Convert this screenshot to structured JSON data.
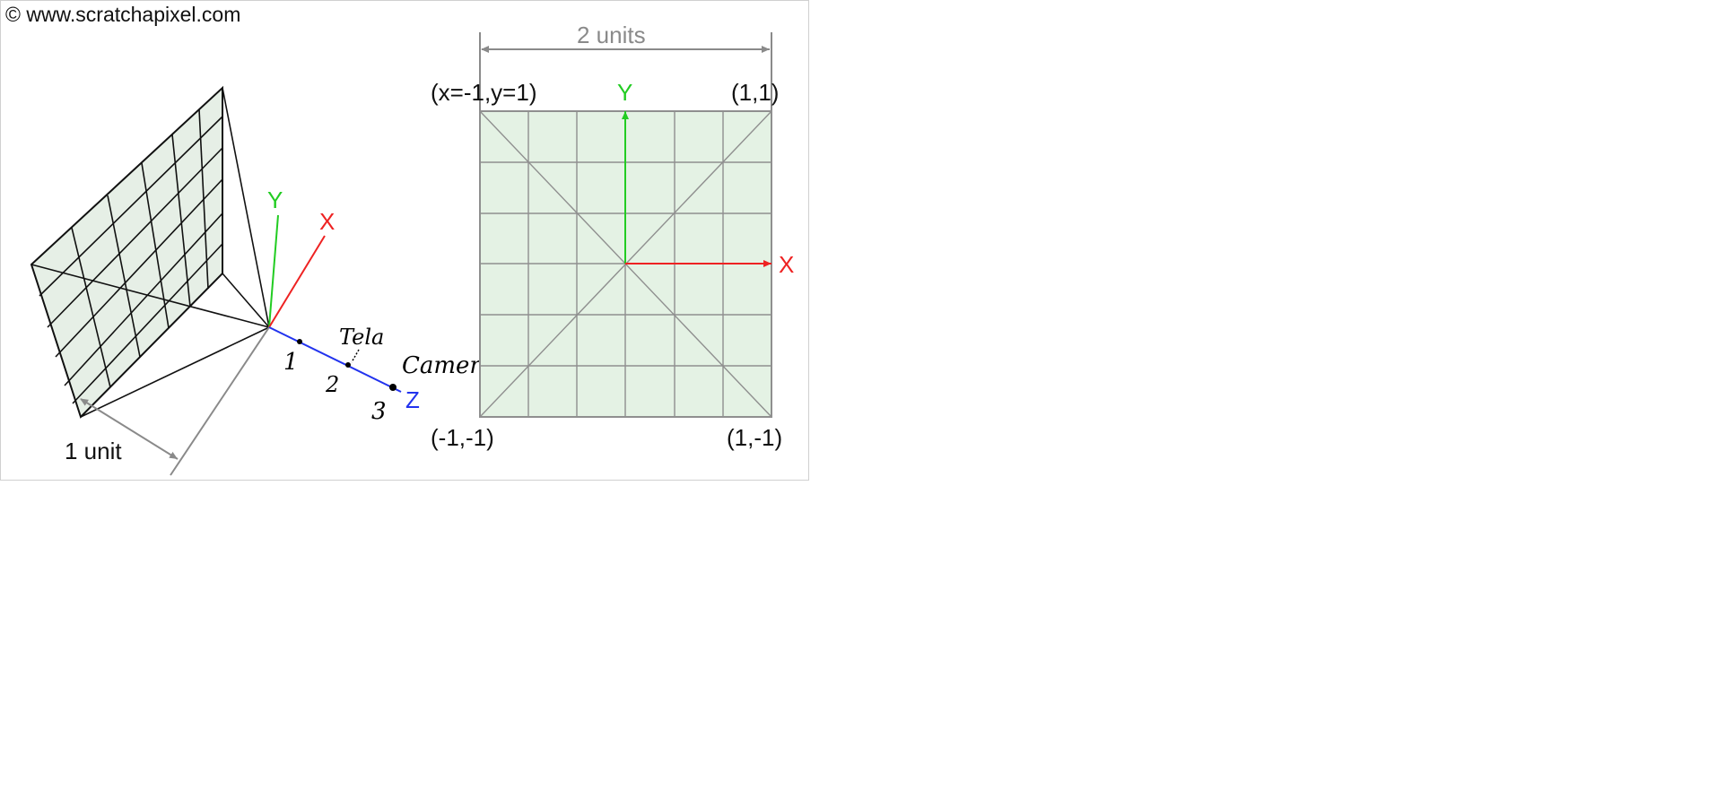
{
  "credit": "© www.scratchapixel.com",
  "perspective_view": {
    "axis_labels": {
      "y": "Y",
      "x": "X",
      "z": "Z"
    },
    "distance_label": "1 unit",
    "handwritten": {
      "marks": [
        "1",
        "2",
        "3"
      ],
      "screen_note": "Tela",
      "camera_note": "Camera"
    }
  },
  "front_view": {
    "width_label": "2 units",
    "corners": {
      "top_left": "(x=-1,y=1)",
      "top_right": "(1,1)",
      "bottom_left": "(-1,-1)",
      "bottom_right": "(1,-1)"
    },
    "axis_labels": {
      "y": "Y",
      "x": "X"
    }
  },
  "colors": {
    "x_axis": "#ee2222",
    "y_axis": "#22cc22",
    "z_axis": "#2233ee",
    "plane_fill": "#e4f2e4",
    "dimension_gray": "#8a8a8a"
  }
}
